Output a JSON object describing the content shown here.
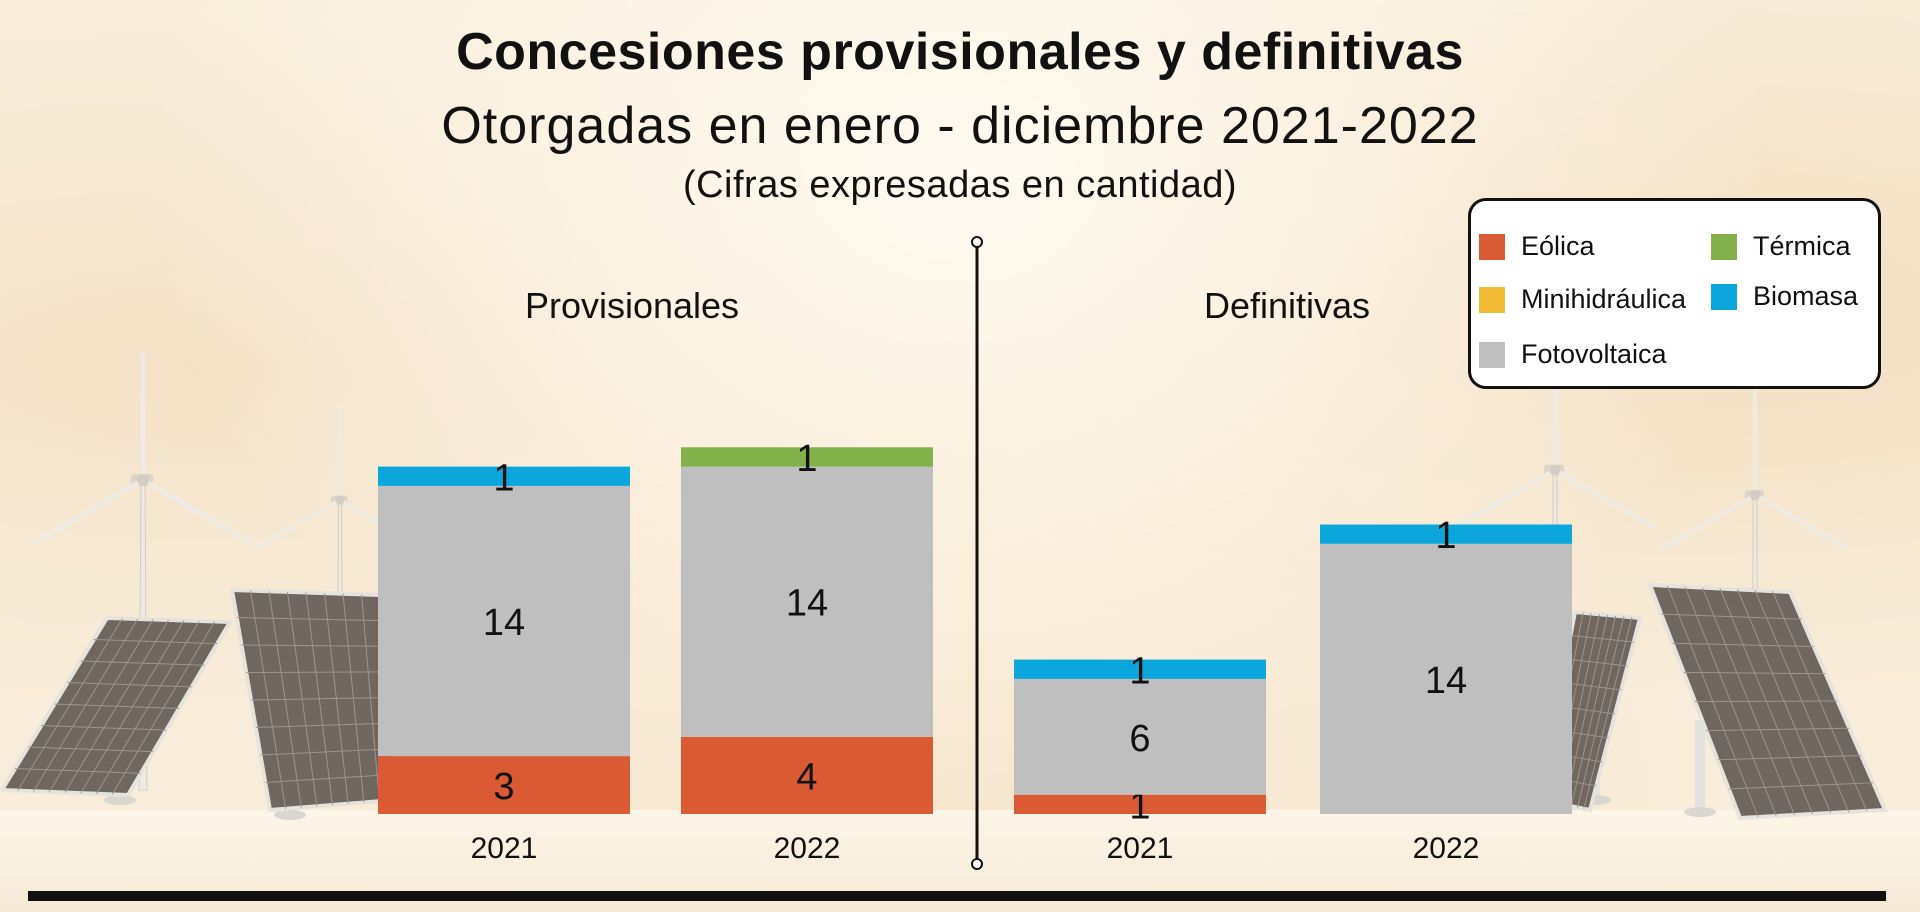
{
  "title": "Concesiones provisionales y definitivas",
  "subtitle": "Otorgadas en enero - diciembre 2021-2022",
  "note": "(Cifras expresadas en cantidad)",
  "legend": [
    {
      "name": "Eólica",
      "color": "#d95a33"
    },
    {
      "name": "Térmica",
      "color": "#82b14a"
    },
    {
      "name": "Minihidráulica",
      "color": "#f2bb34"
    },
    {
      "name": "Biomasa",
      "color": "#0aa6dc"
    },
    {
      "name": "Fotovoltaica",
      "color": "#bfbfbf"
    }
  ],
  "chart_data": [
    {
      "type": "bar",
      "stacked": true,
      "title": "Provisionales",
      "categories": [
        "2021",
        "2022"
      ],
      "series": [
        {
          "name": "Eólica",
          "values": [
            3,
            4
          ],
          "color": "#d95a33"
        },
        {
          "name": "Minihidráulica",
          "values": [
            0,
            0
          ],
          "color": "#f2bb34"
        },
        {
          "name": "Fotovoltaica",
          "values": [
            14,
            14
          ],
          "color": "#bfbfbf"
        },
        {
          "name": "Térmica",
          "values": [
            0,
            1
          ],
          "color": "#82b14a"
        },
        {
          "name": "Biomasa",
          "values": [
            1,
            0
          ],
          "color": "#0aa6dc"
        }
      ]
    },
    {
      "type": "bar",
      "stacked": true,
      "title": "Definitivas",
      "categories": [
        "2021",
        "2022"
      ],
      "series": [
        {
          "name": "Eólica",
          "values": [
            1,
            0
          ],
          "color": "#d95a33"
        },
        {
          "name": "Minihidráulica",
          "values": [
            0,
            0
          ],
          "color": "#f2bb34"
        },
        {
          "name": "Fotovoltaica",
          "values": [
            6,
            14
          ],
          "color": "#bfbfbf"
        },
        {
          "name": "Térmica",
          "values": [
            0,
            0
          ],
          "color": "#82b14a"
        },
        {
          "name": "Biomasa",
          "values": [
            1,
            1
          ],
          "color": "#0aa6dc"
        }
      ]
    }
  ]
}
